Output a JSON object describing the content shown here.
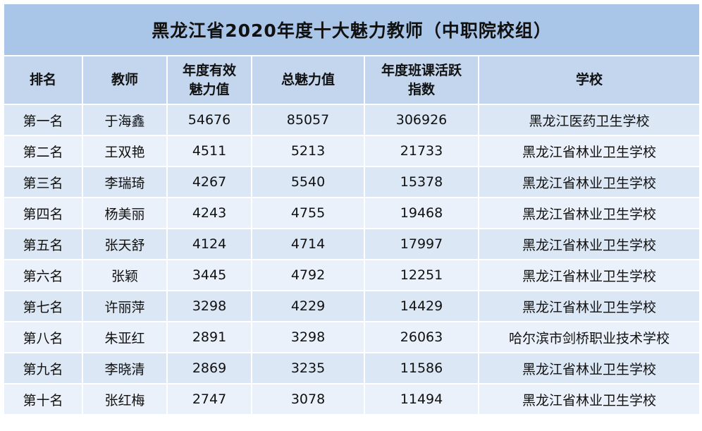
{
  "title": "黑龙江省2020年度十大魅力教师（中职院校组）",
  "headers": {
    "rank": "排名",
    "teacher": "教师",
    "annual_charm": [
      "年度有效",
      "魅力值"
    ],
    "total_charm": "总魅力值",
    "activity": [
      "年度班课活跃",
      "指数"
    ],
    "school": "学校"
  },
  "rows": [
    {
      "rank": "第一名",
      "teacher": "于海鑫",
      "annual": "54676",
      "total": "85057",
      "activity": "306926",
      "school": "黑龙江医药卫生学校"
    },
    {
      "rank": "第二名",
      "teacher": "王双艳",
      "annual": "4511",
      "total": "5213",
      "activity": "21733",
      "school": "黑龙江省林业卫生学校"
    },
    {
      "rank": "第三名",
      "teacher": "李瑞琦",
      "annual": "4267",
      "total": "5540",
      "activity": "15378",
      "school": "黑龙江省林业卫生学校"
    },
    {
      "rank": "第四名",
      "teacher": "杨美丽",
      "annual": "4243",
      "total": "4755",
      "activity": "19468",
      "school": "黑龙江省林业卫生学校"
    },
    {
      "rank": "第五名",
      "teacher": "张天舒",
      "annual": "4124",
      "total": "4714",
      "activity": "17997",
      "school": "黑龙江省林业卫生学校"
    },
    {
      "rank": "第六名",
      "teacher": "张颖",
      "annual": "3445",
      "total": "4792",
      "activity": "12251",
      "school": "黑龙江省林业卫生学校"
    },
    {
      "rank": "第七名",
      "teacher": "许丽萍",
      "annual": "3298",
      "total": "4229",
      "activity": "14429",
      "school": "黑龙江省林业卫生学校"
    },
    {
      "rank": "第八名",
      "teacher": "朱亚红",
      "annual": "2891",
      "total": "3298",
      "activity": "26063",
      "school": "哈尔滨市剑桥职业技术学校"
    },
    {
      "rank": "第九名",
      "teacher": "李晓清",
      "annual": "2869",
      "total": "3235",
      "activity": "11586",
      "school": "黑龙江省林业卫生学校"
    },
    {
      "rank": "第十名",
      "teacher": "张红梅",
      "annual": "2747",
      "total": "3078",
      "activity": "11494",
      "school": "黑龙江省林业卫生学校"
    }
  ],
  "colors": {
    "title_bg": "#a9c6e8",
    "header_bg": "#c3d6ee",
    "row_bg": "#dbe7f5",
    "row_alt_bg": "#eaf1fa"
  }
}
